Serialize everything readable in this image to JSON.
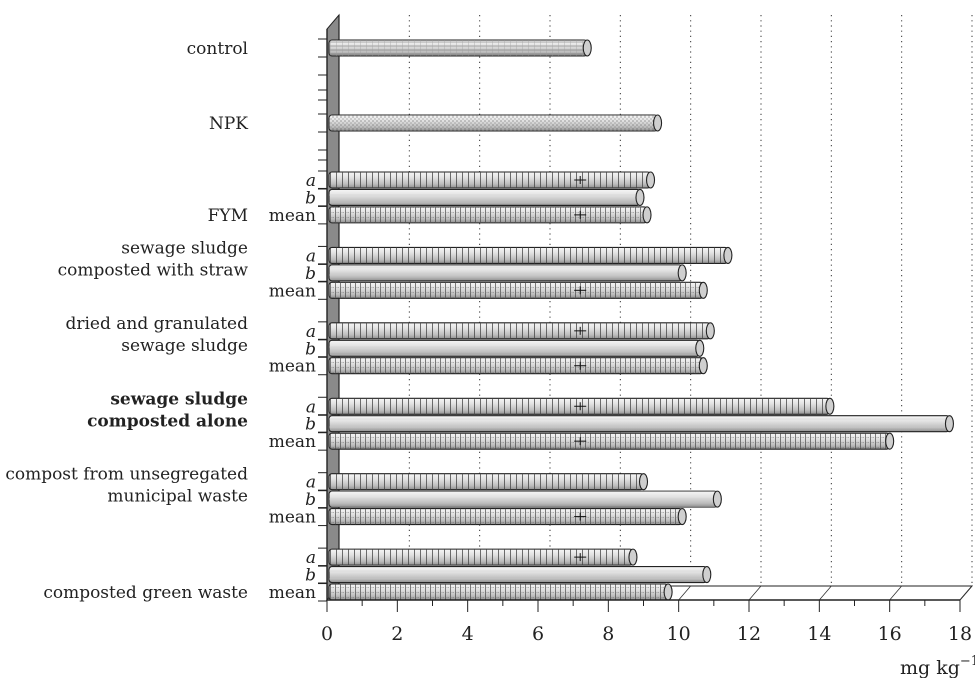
{
  "chart_data": {
    "type": "bar",
    "orientation": "horizontal",
    "unit_label": "mg kg",
    "unit_exponent": "−1",
    "xlim": [
      0,
      18
    ],
    "x_ticks": [
      "0",
      "2",
      "4",
      "6",
      "8",
      "10",
      "12",
      "14",
      "16",
      "18"
    ],
    "grid": "vertical dotted",
    "groups": [
      {
        "label": "control",
        "label_bold": false,
        "rows": [
          {
            "sub": "",
            "value": 7.4,
            "fill": "hatch"
          }
        ]
      },
      {
        "label": "NPK",
        "label_bold": false,
        "rows": [
          {
            "sub": "",
            "value": 9.4,
            "fill": "dots"
          }
        ]
      },
      {
        "label": "FYM",
        "label_bold": false,
        "rows": [
          {
            "sub": "a",
            "value": 9.2,
            "fill": "vstripe",
            "err": 0.2
          },
          {
            "sub": "b",
            "value": 8.9,
            "fill": "plain"
          },
          {
            "sub": "mean",
            "value": 9.1,
            "fill": "grid",
            "err": 0.2
          }
        ]
      },
      {
        "label": "sewage sludge\ncomposted with straw",
        "label_bold": false,
        "rows": [
          {
            "sub": "a",
            "value": 11.4,
            "fill": "vstripe"
          },
          {
            "sub": "b",
            "value": 10.1,
            "fill": "plain"
          },
          {
            "sub": "mean",
            "value": 10.7,
            "fill": "grid",
            "err": 0.2
          }
        ]
      },
      {
        "label": "dried and granulated\nsewage sludge",
        "label_bold": false,
        "rows": [
          {
            "sub": "a",
            "value": 10.9,
            "fill": "vstripe",
            "err": 0.2
          },
          {
            "sub": "b",
            "value": 10.6,
            "fill": "plain"
          },
          {
            "sub": "mean",
            "value": 10.7,
            "fill": "grid",
            "err": 0.2
          }
        ]
      },
      {
        "label": "sewage sludge\ncomposted alone",
        "label_bold": true,
        "rows": [
          {
            "sub": "a",
            "value": 14.3,
            "fill": "vstripe",
            "err": 0.2
          },
          {
            "sub": "b",
            "value": 17.7,
            "fill": "plain"
          },
          {
            "sub": "mean",
            "value": 16.0,
            "fill": "grid",
            "err": 0.2
          }
        ]
      },
      {
        "label": "compost from unsegregated\nmunicipal waste",
        "label_bold": false,
        "rows": [
          {
            "sub": "a",
            "value": 9.0,
            "fill": "vstripe"
          },
          {
            "sub": "b",
            "value": 11.1,
            "fill": "plain"
          },
          {
            "sub": "mean",
            "value": 10.1,
            "fill": "grid",
            "err": 0.3
          }
        ]
      },
      {
        "label": "composted green waste",
        "label_bold": false,
        "rows": [
          {
            "sub": "a",
            "value": 8.7,
            "fill": "vstripe",
            "err": 0.2
          },
          {
            "sub": "b",
            "value": 10.8,
            "fill": "plain"
          },
          {
            "sub": "mean",
            "value": 9.7,
            "fill": "grid"
          }
        ]
      }
    ]
  }
}
